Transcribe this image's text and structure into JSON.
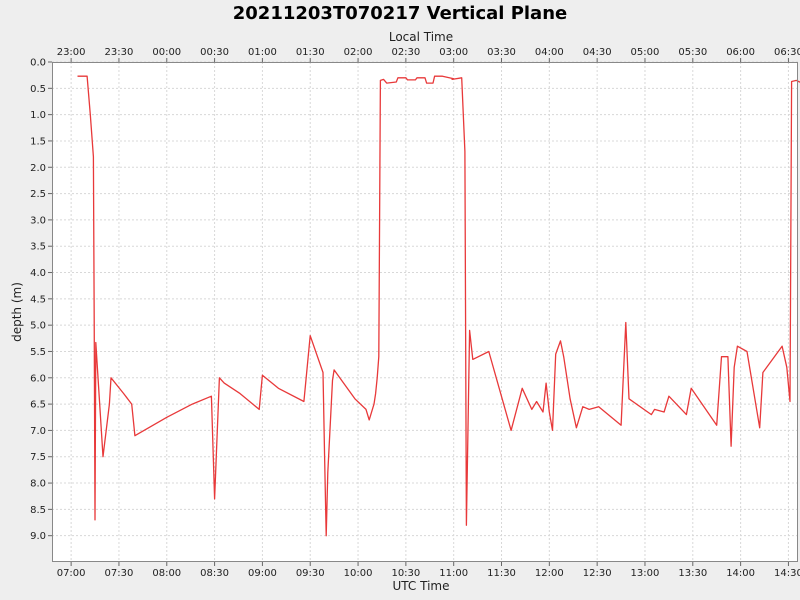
{
  "chart_data": {
    "type": "line",
    "title": "20211203T070217 Vertical Plane",
    "xlabel": "UTC Time",
    "x2label": "Local Time",
    "ylabel": "depth (m)",
    "y_inverted": true,
    "ylim": [
      0.0,
      9.5
    ],
    "xlim": [
      "06:48",
      "14:36"
    ],
    "grid": true,
    "y_ticks": [
      "0.0",
      "0.5",
      "1.0",
      "1.5",
      "2.0",
      "2.5",
      "3.0",
      "3.5",
      "4.0",
      "4.5",
      "5.0",
      "5.5",
      "6.0",
      "6.5",
      "7.0",
      "7.5",
      "8.0",
      "8.5",
      "9.0"
    ],
    "x_ticks": [
      "07:00",
      "07:30",
      "08:00",
      "08:30",
      "09:00",
      "09:30",
      "10:00",
      "10:30",
      "11:00",
      "11:30",
      "12:00",
      "12:30",
      "13:00",
      "13:30",
      "14:00",
      "14:30"
    ],
    "x2_ticks": [
      "23:00",
      "23:30",
      "00:00",
      "00:30",
      "01:00",
      "01:30",
      "02:00",
      "02:30",
      "03:00",
      "03:30",
      "04:00",
      "04:30",
      "05:00",
      "05:30",
      "06:00",
      "06:30"
    ],
    "line_color": "#e8393a",
    "series": [
      {
        "points": [
          [
            "07:04",
            0.27
          ],
          [
            "07:10",
            0.27
          ],
          [
            "07:12",
            1.0
          ],
          [
            "07:14",
            1.8
          ],
          [
            "07:14.5",
            4.9
          ],
          [
            "07:15",
            8.7
          ],
          [
            "07:15.5",
            5.33
          ],
          [
            "07:20",
            7.5
          ],
          [
            "07:24",
            6.5
          ],
          [
            "07:25",
            6.0
          ],
          [
            "07:33",
            6.3
          ],
          [
            "07:38",
            6.5
          ],
          [
            "07:40",
            7.1
          ],
          [
            "08:00",
            6.75
          ],
          [
            "08:16",
            6.5
          ],
          [
            "08:28",
            6.35
          ],
          [
            "08:30",
            8.3
          ],
          [
            "08:33",
            6.0
          ],
          [
            "08:36",
            6.1
          ],
          [
            "08:46",
            6.3
          ],
          [
            "08:58",
            6.6
          ],
          [
            "09:00",
            5.95
          ],
          [
            "09:10",
            6.2
          ],
          [
            "09:26",
            6.45
          ],
          [
            "09:30",
            5.2
          ],
          [
            "09:38",
            5.9
          ],
          [
            "09:39",
            7.5
          ],
          [
            "09:40",
            9.0
          ],
          [
            "09:41",
            7.8
          ],
          [
            "09:44",
            6.05
          ],
          [
            "09:45",
            5.85
          ],
          [
            "09:58",
            6.4
          ],
          [
            "10:05",
            6.6
          ],
          [
            "10:07",
            6.8
          ],
          [
            "10:10",
            6.5
          ],
          [
            "10:11",
            6.3
          ],
          [
            "10:12",
            6.0
          ],
          [
            "10:13",
            5.6
          ],
          [
            "10:14",
            0.35
          ],
          [
            "10:16",
            0.33
          ],
          [
            "10:18",
            0.4
          ],
          [
            "10:24",
            0.38
          ],
          [
            "10:25",
            0.3
          ],
          [
            "10:30",
            0.3
          ],
          [
            "10:31",
            0.34
          ],
          [
            "10:36",
            0.34
          ],
          [
            "10:37",
            0.3
          ],
          [
            "10:42",
            0.3
          ],
          [
            "10:43",
            0.4
          ],
          [
            "10:47",
            0.4
          ],
          [
            "10:48",
            0.27
          ],
          [
            "10:53",
            0.27
          ],
          [
            "11:00",
            0.32
          ],
          [
            "10:59",
            0.33
          ],
          [
            "11:05",
            0.3
          ],
          [
            "11:07",
            1.7
          ],
          [
            "11:08",
            8.8
          ],
          [
            "11:10",
            5.1
          ],
          [
            "11:12",
            5.65
          ],
          [
            "11:22",
            5.5
          ],
          [
            "11:36",
            7.0
          ],
          [
            "11:43",
            6.2
          ],
          [
            "11:49",
            6.6
          ],
          [
            "11:52",
            6.45
          ],
          [
            "11:56",
            6.65
          ],
          [
            "11:58",
            6.1
          ],
          [
            "12:00",
            6.65
          ],
          [
            "12:02",
            7.0
          ],
          [
            "12:04",
            5.55
          ],
          [
            "12:07",
            5.3
          ],
          [
            "12:09",
            5.6
          ],
          [
            "12:13",
            6.4
          ],
          [
            "12:17",
            6.95
          ],
          [
            "12:21",
            6.55
          ],
          [
            "12:25",
            6.6
          ],
          [
            "12:31",
            6.55
          ],
          [
            "12:45",
            6.9
          ],
          [
            "12:48",
            4.95
          ],
          [
            "12:50",
            6.4
          ],
          [
            "13:04",
            6.7
          ],
          [
            "13:06",
            6.6
          ],
          [
            "13:12",
            6.65
          ],
          [
            "13:15",
            6.35
          ],
          [
            "13:26",
            6.7
          ],
          [
            "13:29",
            6.2
          ],
          [
            "13:45",
            6.9
          ],
          [
            "13:48",
            5.6
          ],
          [
            "13:52",
            5.6
          ],
          [
            "13:54",
            7.3
          ],
          [
            "13:56",
            5.8
          ],
          [
            "13:58",
            5.4
          ],
          [
            "14:04",
            5.5
          ],
          [
            "14:12",
            6.95
          ],
          [
            "14:14",
            5.9
          ],
          [
            "14:26",
            5.4
          ],
          [
            "14:29",
            5.8
          ],
          [
            "14:31",
            6.45
          ],
          [
            "14:32",
            0.37
          ],
          [
            "14:35",
            0.35
          ],
          [
            "14:37",
            0.38
          ],
          [
            "14:44",
            0.38
          ],
          [
            "14:46",
            0.4
          ]
        ]
      }
    ]
  }
}
